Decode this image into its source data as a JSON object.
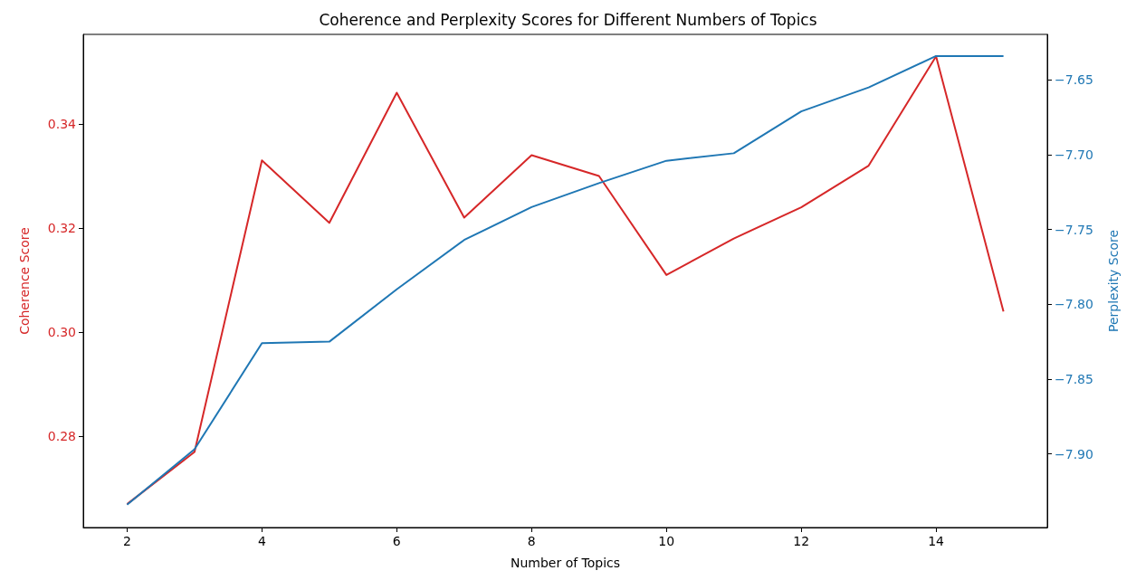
{
  "chart_data": {
    "type": "line",
    "title": "Coherence and Perplexity Scores for Different Numbers of Topics",
    "xlabel": "Number of Topics",
    "ylabel": "Coherence Score",
    "y2label": "Perplexity Score",
    "x": [
      2,
      3,
      4,
      5,
      6,
      7,
      8,
      9,
      10,
      11,
      12,
      13,
      14,
      15
    ],
    "series": [
      {
        "color": "#d62728",
        "values": [
          0.267,
          0.277,
          0.333,
          0.321,
          0.346,
          0.322,
          0.334,
          0.33,
          0.311,
          0.318,
          0.324,
          0.332,
          0.353,
          0.304
        ]
      },
      {
        "color": "#1f77b4",
        "axis": "y2",
        "values": [
          -7.934,
          -7.897,
          -7.826,
          -7.825,
          -7.79,
          -7.757,
          -7.735,
          -7.719,
          -7.704,
          -7.699,
          -7.671,
          -7.655,
          -7.634,
          -7.634
        ]
      }
    ],
    "xlim": [
      1.35,
      15.65
    ],
    "xticks": [
      2,
      4,
      6,
      8,
      10,
      12,
      14
    ],
    "ylim": [
      0.2625,
      0.3572
    ],
    "yticks": [
      {
        "value": 0.28,
        "label": "0.28"
      },
      {
        "value": 0.3,
        "label": "0.30"
      },
      {
        "value": 0.32,
        "label": "0.32"
      },
      {
        "value": 0.34,
        "label": "0.34"
      }
    ],
    "y2lim": [
      -7.9493,
      -7.6195
    ],
    "y2ticks": [
      {
        "value": -7.9,
        "label": "−7.90"
      },
      {
        "value": -7.85,
        "label": "−7.85"
      },
      {
        "value": -7.8,
        "label": "−7.80"
      },
      {
        "value": -7.75,
        "label": "−7.75"
      },
      {
        "value": -7.7,
        "label": "−7.70"
      },
      {
        "value": -7.65,
        "label": "−7.65"
      }
    ],
    "grid": false,
    "marker": "none",
    "line_style": "solid"
  }
}
